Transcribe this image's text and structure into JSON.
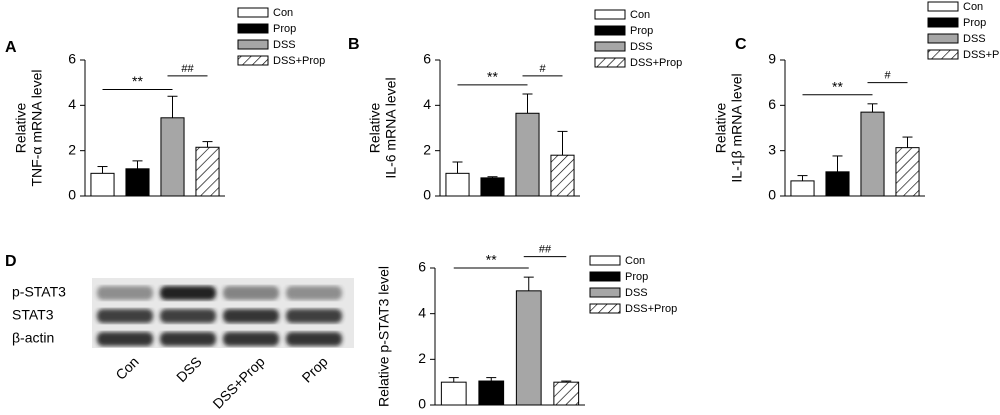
{
  "chart_data": [
    {
      "type": "bar",
      "panel": "A",
      "ylabel": [
        "Relative",
        "TNF-α mRNA level"
      ],
      "ylim": [
        0,
        6
      ],
      "yticks": [
        0,
        2,
        4,
        6
      ],
      "series": [
        {
          "name": "Con",
          "color": "#ffffff",
          "values": [
            1.0
          ],
          "errors": [
            0.3
          ]
        },
        {
          "name": "Prop",
          "color": "#000000",
          "values": [
            1.2
          ],
          "errors": [
            0.35
          ]
        },
        {
          "name": "DSS",
          "color": "#a6a6a6",
          "values": [
            3.45
          ],
          "errors": [
            0.95
          ]
        },
        {
          "name": "DSS+Prop",
          "color": "#ffffff",
          "pattern": "hatch",
          "values": [
            2.15
          ],
          "errors": [
            0.25
          ]
        }
      ],
      "annotations": [
        {
          "text": "**",
          "from": 0,
          "to": 2,
          "y": 4.7
        },
        {
          "text": "##",
          "from": 2,
          "to": 3,
          "y": 5.3
        }
      ]
    },
    {
      "type": "bar",
      "panel": "B",
      "ylabel": [
        "Relative",
        "IL-6 mRNA level"
      ],
      "ylim": [
        0,
        6
      ],
      "yticks": [
        0,
        2,
        4,
        6
      ],
      "series": [
        {
          "name": "Con",
          "color": "#ffffff",
          "values": [
            1.0
          ],
          "errors": [
            0.5
          ]
        },
        {
          "name": "Prop",
          "color": "#000000",
          "values": [
            0.8
          ],
          "errors": [
            0.05
          ]
        },
        {
          "name": "DSS",
          "color": "#a6a6a6",
          "values": [
            3.65
          ],
          "errors": [
            0.85
          ]
        },
        {
          "name": "DSS+Prop",
          "color": "#ffffff",
          "pattern": "hatch",
          "values": [
            1.8
          ],
          "errors": [
            1.05
          ]
        }
      ],
      "annotations": [
        {
          "text": "**",
          "from": 0,
          "to": 2,
          "y": 4.9
        },
        {
          "text": "#",
          "from": 2,
          "to": 3,
          "y": 5.3
        }
      ]
    },
    {
      "type": "bar",
      "panel": "C",
      "ylabel": [
        "Relative",
        "IL-1β mRNA level"
      ],
      "ylim": [
        0,
        9
      ],
      "yticks": [
        0,
        3,
        6,
        9
      ],
      "series": [
        {
          "name": "Con",
          "color": "#ffffff",
          "values": [
            1.0
          ],
          "errors": [
            0.35
          ]
        },
        {
          "name": "Prop",
          "color": "#000000",
          "values": [
            1.6
          ],
          "errors": [
            1.05
          ]
        },
        {
          "name": "DSS",
          "color": "#a6a6a6",
          "values": [
            5.55
          ],
          "errors": [
            0.55
          ]
        },
        {
          "name": "DSS+Prop",
          "color": "#ffffff",
          "pattern": "hatch",
          "values": [
            3.2
          ],
          "errors": [
            0.7
          ]
        }
      ],
      "annotations": [
        {
          "text": "**",
          "from": 0,
          "to": 2,
          "y": 6.7
        },
        {
          "text": "#",
          "from": 2,
          "to": 3,
          "y": 7.5
        }
      ]
    },
    {
      "type": "bar",
      "panel": "D",
      "ylabel": [
        "Relative p-STAT3 level"
      ],
      "ylim": [
        0,
        6
      ],
      "yticks": [
        0,
        2,
        4,
        6
      ],
      "series": [
        {
          "name": "Con",
          "color": "#ffffff",
          "values": [
            1.0
          ],
          "errors": [
            0.2
          ]
        },
        {
          "name": "Prop",
          "color": "#000000",
          "values": [
            1.05
          ],
          "errors": [
            0.15
          ]
        },
        {
          "name": "DSS",
          "color": "#a6a6a6",
          "values": [
            5.0
          ],
          "errors": [
            0.6
          ]
        },
        {
          "name": "DSS+Prop",
          "color": "#ffffff",
          "pattern": "hatch",
          "values": [
            1.0
          ],
          "errors": [
            0.05
          ]
        }
      ],
      "annotations": [
        {
          "text": "**",
          "from": 0,
          "to": 2,
          "y": 6.0
        },
        {
          "text": "##",
          "from": 2,
          "to": 3,
          "y": 6.5
        }
      ]
    }
  ],
  "blot": {
    "rows": [
      "p-STAT3",
      "STAT3",
      "β-actin"
    ],
    "lanes": [
      "Con",
      "DSS",
      "DSS+Prop",
      "Prop"
    ]
  }
}
